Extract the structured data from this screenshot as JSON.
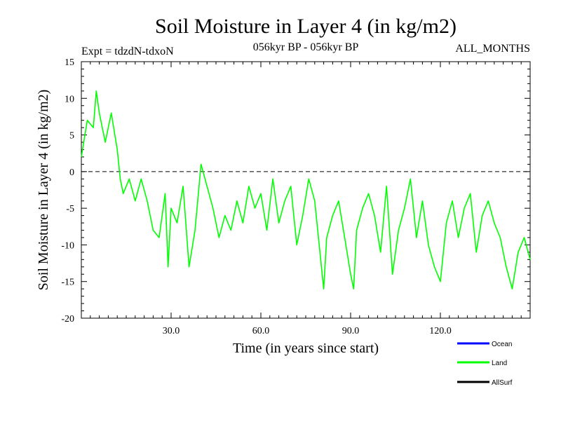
{
  "chart_data": {
    "type": "line",
    "title": "Soil Moisture in Layer 4 (in kg/m2)",
    "subtitle_left": "Expt = tdzdN-tdxoN",
    "subtitle_center": "056kyr BP - 056kyr BP",
    "subtitle_right": "ALL_MONTHS",
    "xlabel": "Time (in years since start)",
    "ylabel": "Soil Moisture in Layer 4 (in kg/m2)",
    "xlim": [
      0,
      150
    ],
    "ylim": [
      -20,
      15
    ],
    "x_ticks": [
      30,
      60,
      90,
      120
    ],
    "x_tick_labels": [
      "30.0",
      "60.0",
      "90.0",
      "120.0"
    ],
    "y_ticks": [
      -20,
      -15,
      -10,
      -5,
      0,
      5,
      10,
      15
    ],
    "y_tick_labels": [
      "-20",
      "-15",
      "-10",
      "-5",
      "0",
      "5",
      "10",
      "15"
    ],
    "reference_line": 0,
    "colors": {
      "Ocean": "#0000ff",
      "Land": "#00ff00",
      "AllSurf": "#000000"
    },
    "legend": [
      {
        "name": "Ocean",
        "label": "Ocean"
      },
      {
        "name": "Land",
        "label": "Land"
      },
      {
        "name": "AllSurf",
        "label": "AllSurf"
      }
    ],
    "series": [
      {
        "name": "Land",
        "x": [
          0,
          2,
          4,
          5,
          6,
          8,
          10,
          12,
          13,
          14,
          16,
          18,
          20,
          22,
          24,
          26,
          28,
          29,
          30,
          32,
          34,
          36,
          38,
          40,
          42,
          44,
          46,
          48,
          50,
          52,
          54,
          56,
          58,
          60,
          62,
          64,
          66,
          68,
          70,
          72,
          74,
          76,
          78,
          80,
          81,
          82,
          84,
          86,
          88,
          90,
          91,
          92,
          94,
          96,
          98,
          100,
          102,
          104,
          106,
          108,
          110,
          112,
          114,
          116,
          118,
          120,
          122,
          124,
          126,
          128,
          130,
          132,
          134,
          136,
          138,
          140,
          142,
          144,
          146,
          148,
          150
        ],
        "y": [
          2,
          7,
          6,
          11,
          8,
          4,
          8,
          3,
          -1,
          -3,
          -1,
          -4,
          -1,
          -4,
          -8,
          -9,
          -3,
          -13,
          -5,
          -7,
          -2,
          -13,
          -8,
          1,
          -2,
          -5,
          -9,
          -6,
          -8,
          -4,
          -7,
          -2,
          -5,
          -3,
          -8,
          -1,
          -7,
          -4,
          -2,
          -10,
          -6,
          -1,
          -4,
          -12,
          -16,
          -9,
          -6,
          -4,
          -9,
          -14,
          -16,
          -8,
          -5,
          -3,
          -6,
          -11,
          -2,
          -14,
          -8,
          -5,
          -1,
          -9,
          -4,
          -10,
          -13,
          -15,
          -7,
          -4,
          -9,
          -5,
          -3,
          -11,
          -6,
          -4,
          -7,
          -9,
          -13,
          -16,
          -11,
          -9,
          -12
        ]
      }
    ]
  }
}
